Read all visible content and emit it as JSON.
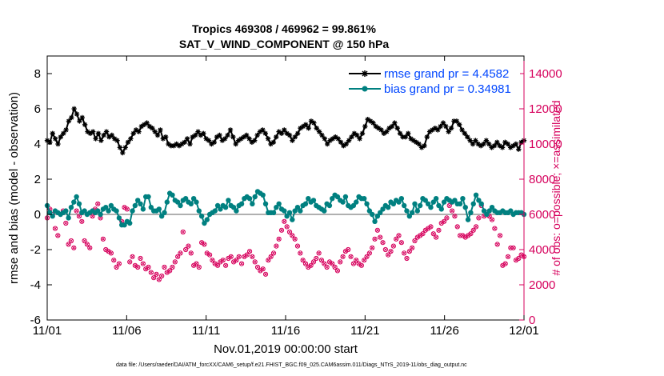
{
  "chart_data": {
    "type": "line",
    "title_line1": "Tropics 469308 / 469962 = 99.861%",
    "title_line2": "SAT_V_WIND_COMPONENT @ 150 hPa",
    "xlabel": "Nov.01,2019 00:00:00 start",
    "ylabel_left": "rmse and bias (model - observation)",
    "ylabel_right": "# of obs: o=possible; ×=assimilated",
    "footnote": "data file: /Users/raeder/DAI/ATM_forcXX/CAM6_setup/f.e21.FHIST_BGC.f09_025.CAM6assim.011/Diags_NTrS_2019-11/obs_diag_output.nc",
    "xlim": [
      0,
      30
    ],
    "ylim_left": [
      -6,
      9
    ],
    "ylim_right": [
      0,
      15000
    ],
    "x_tick_values": [
      0,
      5,
      10,
      15,
      20,
      25,
      30
    ],
    "x_tick_labels": [
      "11/01",
      "11/06",
      "11/11",
      "11/16",
      "11/21",
      "11/26",
      "12/01"
    ],
    "y_tick_values_left": [
      -6,
      -4,
      -2,
      0,
      2,
      4,
      6,
      8
    ],
    "y_tick_labels_left": [
      "-6",
      "-4",
      "-2",
      "0",
      "2",
      "4",
      "6",
      "8"
    ],
    "y_tick_values_right": [
      0,
      2000,
      4000,
      6000,
      8000,
      10000,
      12000,
      14000
    ],
    "y_tick_labels_right": [
      "0",
      "2000",
      "4000",
      "6000",
      "8000",
      "10000",
      "12000",
      "14000"
    ],
    "series": [
      {
        "name": "rmse",
        "legend": "rmse grand pr = 4.4582",
        "color": "#000000",
        "marker": "star",
        "values": [
          4.2,
          4.1,
          4.6,
          4.3,
          4.0,
          4.4,
          4.6,
          4.8,
          5.3,
          5.5,
          6.0,
          5.7,
          5.3,
          5.5,
          5.1,
          4.7,
          4.6,
          4.7,
          4.3,
          4.6,
          4.2,
          4.5,
          4.7,
          4.4,
          4.5,
          4.3,
          4.2,
          3.8,
          3.5,
          3.8,
          4.1,
          4.3,
          4.6,
          4.8,
          4.7,
          5.0,
          5.1,
          5.2,
          5.0,
          4.9,
          4.7,
          4.5,
          4.8,
          4.3,
          4.4,
          4.0,
          3.9,
          3.9,
          4.0,
          3.9,
          4.0,
          4.1,
          4.3,
          4.0,
          4.4,
          4.5,
          4.7,
          4.5,
          4.6,
          4.3,
          4.2,
          4.0,
          4.1,
          4.4,
          4.5,
          4.2,
          4.3,
          4.5,
          4.8,
          4.4,
          4.0,
          4.2,
          4.3,
          4.4,
          4.5,
          4.3,
          4.1,
          4.2,
          4.5,
          4.7,
          4.8,
          4.6,
          4.3,
          4.0,
          4.1,
          4.4,
          4.7,
          4.6,
          4.8,
          4.6,
          4.5,
          4.2,
          4.4,
          4.6,
          4.9,
          5.0,
          5.1,
          4.9,
          5.3,
          5.2,
          4.9,
          4.7,
          4.5,
          4.3,
          4.0,
          4.2,
          4.3,
          4.4,
          4.3,
          4.1,
          3.9,
          4.0,
          4.2,
          4.4,
          4.6,
          4.5,
          4.3,
          4.6,
          5.0,
          5.4,
          5.3,
          5.2,
          5.0,
          4.9,
          4.8,
          4.6,
          4.7,
          4.9,
          5.0,
          5.2,
          4.9,
          4.6,
          4.4,
          4.4,
          4.6,
          4.3,
          4.2,
          4.1,
          4.0,
          3.8,
          3.9,
          4.4,
          4.7,
          4.8,
          4.9,
          4.8,
          5.0,
          5.2,
          5.0,
          4.7,
          4.9,
          5.3,
          5.3,
          5.1,
          4.8,
          4.6,
          4.4,
          4.2,
          4.0,
          4.2,
          4.0,
          3.9,
          4.0,
          4.2,
          4.0,
          3.8,
          3.9,
          4.1,
          3.9,
          3.8,
          4.1,
          4.0,
          3.8,
          3.9,
          4.0,
          3.7,
          4.1,
          4.2
        ]
      },
      {
        "name": "bias",
        "legend": "bias grand pr = 0.34981",
        "color": "#008080",
        "marker": "circle",
        "values": [
          0.5,
          0.1,
          -0.1,
          0.2,
          0.1,
          0.0,
          0.1,
          0.2,
          -0.2,
          0.4,
          0.7,
          1.0,
          0.6,
          0.1,
          0.2,
          0.0,
          0.1,
          0.2,
          0.1,
          0.2,
          0.0,
          0.3,
          0.4,
          0.2,
          0.5,
          0.3,
          0.2,
          -0.2,
          -0.6,
          -0.6,
          -0.4,
          -0.5,
          0.2,
          0.5,
          0.8,
          0.6,
          0.3,
          1.0,
          1.0,
          0.4,
          0.2,
          0.2,
          0.3,
          -0.1,
          0.1,
          0.7,
          1.2,
          1.1,
          0.8,
          0.7,
          0.5,
          0.8,
          0.9,
          0.7,
          0.6,
          0.9,
          0.7,
          0.2,
          -0.1,
          -0.5,
          -0.3,
          0.0,
          0.1,
          0.2,
          0.5,
          0.3,
          0.5,
          0.4,
          0.8,
          0.5,
          0.4,
          0.2,
          0.5,
          0.6,
          0.9,
          1.0,
          0.9,
          0.6,
          1.0,
          1.3,
          1.2,
          1.1,
          0.6,
          0.1,
          0.1,
          0.1,
          0.4,
          0.6,
          0.3,
          0.2,
          -0.1,
          0.1,
          -0.3,
          0.2,
          0.4,
          0.2,
          0.5,
          0.6,
          0.9,
          0.7,
          0.8,
          0.5,
          0.4,
          0.3,
          0.2,
          0.6,
          0.5,
          0.9,
          1.1,
          1.0,
          0.8,
          0.7,
          1.0,
          0.5,
          0.4,
          0.5,
          0.7,
          1.0,
          0.9,
          0.9,
          0.6,
          0.2,
          0.0,
          -0.4,
          -0.1,
          0.1,
          0.3,
          0.5,
          0.4,
          0.7,
          0.6,
          0.8,
          0.7,
          0.9,
          0.5,
          0.2,
          -0.1,
          0.1,
          0.6,
          0.2,
          0.5,
          0.9,
          0.8,
          0.6,
          0.4,
          0.7,
          0.9,
          0.5,
          0.3,
          0.7,
          0.9,
          0.8,
          0.7,
          0.8,
          0.6,
          0.6,
          0.9,
          0.4,
          -0.3,
          0.1,
          0.6,
          1.1,
          0.8,
          0.6,
          0.2,
          0.0,
          0.2,
          0.4,
          0.2,
          0.1,
          0.1,
          0.2,
          0.1,
          0.1,
          0.2,
          0.0,
          0.1,
          0.1,
          0.1,
          0.0
        ]
      },
      {
        "name": "obs_possible",
        "color": "#d6005c",
        "marker": "o",
        "axis": "right",
        "values": [
          5800,
          6300,
          6000,
          5200,
          4800,
          6000,
          6200,
          5500,
          4300,
          4500,
          4100,
          6200,
          5900,
          5600,
          4500,
          4300,
          4100,
          5900,
          6300,
          6600,
          5800,
          4600,
          4000,
          3900,
          3800,
          3400,
          3000,
          3200,
          5600,
          6400,
          6300,
          3300,
          3600,
          3100,
          3000,
          3500,
          3200,
          2900,
          3000,
          2700,
          2400,
          2600,
          2300,
          2500,
          3000,
          2700,
          2800,
          3000,
          3300,
          3600,
          3800,
          5000,
          4000,
          4200,
          3800,
          3100,
          3200,
          3000,
          4400,
          4300,
          3800,
          3700,
          3400,
          3200,
          3100,
          3300,
          3400,
          3100,
          3500,
          3600,
          3300,
          3400,
          3600,
          3200,
          3600,
          3700,
          3900,
          3600,
          3300,
          3000,
          2800,
          2900,
          2600,
          3400,
          3600,
          3800,
          4200,
          4600,
          5100,
          5600,
          5300,
          5000,
          4800,
          4600,
          4200,
          3800,
          3400,
          3200,
          3000,
          3100,
          3300,
          3500,
          3800,
          3400,
          3200,
          3000,
          3300,
          3200,
          3000,
          2800,
          3300,
          3600,
          3900,
          4000,
          3600,
          3200,
          3400,
          3200,
          3100,
          3400,
          3600,
          3800,
          4100,
          4600,
          5100,
          4700,
          4400,
          4000,
          3700,
          3900,
          4200,
          4600,
          4800,
          4400,
          3800,
          3500,
          3900,
          4100,
          4500,
          4700,
          4800,
          4900,
          5100,
          5200,
          5300,
          4900,
          4700,
          5100,
          5500,
          5600,
          5800,
          6500,
          6200,
          5900,
          5300,
          4800,
          4800,
          4700,
          4800,
          4900,
          5100,
          5300,
          5800,
          6500,
          5900,
          6100,
          5900,
          5700,
          5200,
          4300,
          4800,
          3100,
          3200,
          3600,
          4100,
          4100,
          3400,
          3500,
          3700,
          3600
        ]
      },
      {
        "name": "obs_assimilated",
        "color": "#d6005c",
        "marker": "x",
        "axis": "right",
        "values": [
          5800,
          6300,
          6000,
          5200,
          4800,
          6000,
          6200,
          5500,
          4300,
          4500,
          4100,
          6200,
          5900,
          5600,
          4500,
          4300,
          4100,
          5900,
          6300,
          6600,
          5800,
          4600,
          4000,
          3900,
          3800,
          3400,
          3000,
          3200,
          5600,
          6400,
          6300,
          3300,
          3600,
          3100,
          3000,
          3500,
          3200,
          2900,
          3000,
          2700,
          2400,
          2600,
          2300,
          2500,
          3000,
          2700,
          2800,
          3000,
          3300,
          3600,
          3800,
          5000,
          4000,
          4200,
          3800,
          3100,
          3200,
          3000,
          4400,
          4300,
          3800,
          3700,
          3400,
          3200,
          3100,
          3300,
          3400,
          3100,
          3500,
          3600,
          3300,
          3400,
          3600,
          3200,
          3600,
          3700,
          3900,
          3600,
          3300,
          3000,
          2800,
          2900,
          2600,
          3400,
          3600,
          3800,
          4200,
          4600,
          5100,
          5600,
          5300,
          5000,
          4800,
          4600,
          4200,
          3800,
          3400,
          3200,
          3000,
          3100,
          3300,
          3500,
          3800,
          3400,
          3200,
          3000,
          3300,
          3200,
          3000,
          2800,
          3300,
          3600,
          3900,
          4000,
          3600,
          3200,
          3400,
          3200,
          3100,
          3400,
          3600,
          3800,
          4100,
          4600,
          5100,
          4700,
          4400,
          4000,
          3700,
          3900,
          4200,
          4600,
          4800,
          4400,
          3800,
          3500,
          3900,
          4100,
          4500,
          4700,
          4800,
          4900,
          5100,
          5200,
          5300,
          4900,
          4700,
          5100,
          5500,
          5600,
          5800,
          6500,
          6200,
          5900,
          5300,
          4800,
          4800,
          4700,
          4800,
          4900,
          5100,
          5300,
          5800,
          6500,
          5900,
          6100,
          5900,
          5700,
          5200,
          4300,
          4800,
          3100,
          3200,
          3600,
          4100,
          4100,
          3400,
          3500,
          3700,
          3600
        ]
      }
    ],
    "zero_line": {
      "value": 0,
      "color": "#b0b0b0"
    }
  }
}
